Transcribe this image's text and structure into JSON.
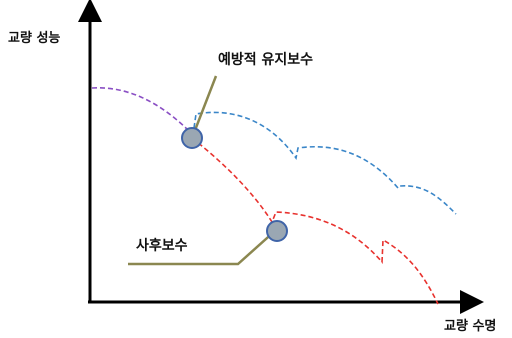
{
  "labels": {
    "y_axis": "교량 성능",
    "x_axis": "교량 수명",
    "preventive": "예방적 유지보수",
    "corrective": "사후보수"
  },
  "colors": {
    "initial_curve": "#8a4fc4",
    "preventive_curve": "#3a86c8",
    "corrective_curve": "#e8322e",
    "leader_line": "#8b8750",
    "marker_fill": "#9aa7b3",
    "marker_stroke": "#3f64a8",
    "axis": "#000000"
  }
}
